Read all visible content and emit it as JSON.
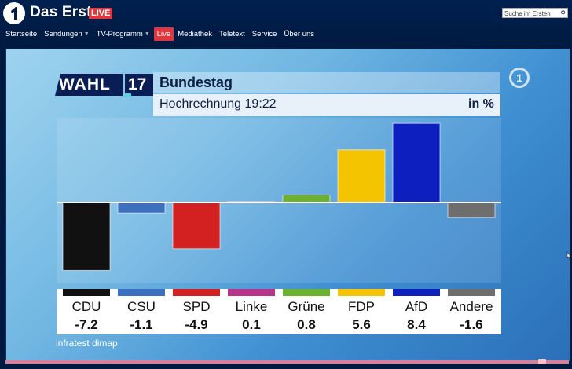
{
  "header": {
    "brand": "Das Erste",
    "live_badge": "LIVE",
    "search_placeholder": "Suche im Ersten"
  },
  "nav": [
    {
      "label": "Startseite",
      "dropdown": false,
      "active": false
    },
    {
      "label": "Sendungen",
      "dropdown": true,
      "active": false
    },
    {
      "label": "TV-Programm",
      "dropdown": true,
      "active": false
    },
    {
      "label": "Live",
      "dropdown": false,
      "active": true
    },
    {
      "label": "Mediathek",
      "dropdown": false,
      "active": false
    },
    {
      "label": "Teletext",
      "dropdown": false,
      "active": false
    },
    {
      "label": "Service",
      "dropdown": false,
      "active": false
    },
    {
      "label": "Über uns",
      "dropdown": false,
      "active": false
    }
  ],
  "video": {
    "wahl": "WAHL",
    "wahl_year": "17",
    "headline": "Bundestag",
    "subline": "Hochrechnung 19:22",
    "unit": "in %",
    "channel_logo": "1",
    "source": "infratest dimap"
  },
  "chart_data": {
    "type": "bar",
    "categories": [
      "CDU",
      "CSU",
      "SPD",
      "Linke",
      "Grüne",
      "FDP",
      "AfD",
      "Andere"
    ],
    "value_labels": [
      "-7.2",
      "-1.1",
      "-4.9",
      "0.1",
      "0.8",
      "5.6",
      "8.4",
      "-1.6"
    ],
    "values": [
      -7.2,
      -1.1,
      -4.9,
      0.1,
      0.8,
      5.6,
      8.4,
      -1.6
    ],
    "colors": [
      "#111111",
      "#3c6fc0",
      "#d32020",
      "#b8348a",
      "#6bb32e",
      "#f5c400",
      "#0d1fbf",
      "#6e6e6e"
    ],
    "ylim": [
      -8.5,
      9
    ]
  }
}
